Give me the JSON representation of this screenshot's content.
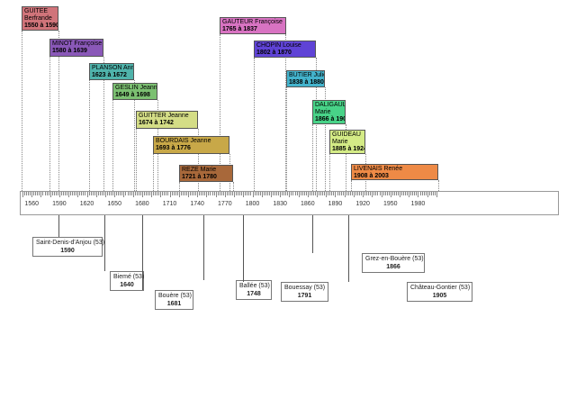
{
  "timeline": {
    "axis": {
      "start": 1550,
      "end": 2000,
      "labels": [
        "1560",
        "1590",
        "1620",
        "1650",
        "1680",
        "1710",
        "1740",
        "1770",
        "1800",
        "1830",
        "1860",
        "1890",
        "1920",
        "1950",
        "1980"
      ]
    },
    "persons": [
      {
        "name_lines": [
          "GUITEE",
          "Berfrande"
        ],
        "years": "1550 à 1590",
        "birth": 1550,
        "death": 1590,
        "color": "#d0747a"
      },
      {
        "name_lines": [
          "MINOT Françoise"
        ],
        "years": "1580 à 1639",
        "birth": 1580,
        "death": 1639,
        "color": "#8a58b8"
      },
      {
        "name_lines": [
          "PLANSON Anne"
        ],
        "years": "1623 à 1672",
        "birth": 1623,
        "death": 1672,
        "color": "#4fb3ab"
      },
      {
        "name_lines": [
          "GESLIN Jeanne"
        ],
        "years": "1649 à 1698",
        "birth": 1649,
        "death": 1698,
        "color": "#7cc072"
      },
      {
        "name_lines": [
          "GUITTER Jeanne"
        ],
        "years": "1674 à 1742",
        "birth": 1674,
        "death": 1742,
        "color": "#d4dd86"
      },
      {
        "name_lines": [
          "BOURDAIS Jeanne"
        ],
        "years": "1693 à 1776",
        "birth": 1693,
        "death": 1776,
        "color": "#c8a848"
      },
      {
        "name_lines": [
          "REZE Marie"
        ],
        "years": "1721 à 1780",
        "birth": 1721,
        "death": 1780,
        "color": "#a8683a"
      },
      {
        "name_lines": [
          "GAUTEUR Françoise"
        ],
        "years": "1765 à 1837",
        "birth": 1765,
        "death": 1837,
        "color": "#d873c2"
      },
      {
        "name_lines": [
          "CHOPIN Louise"
        ],
        "years": "1802 à 1870",
        "birth": 1802,
        "death": 1870,
        "color": "#5f43d6"
      },
      {
        "name_lines": [
          "BUTIER Julie"
        ],
        "years": "1838 à 1880",
        "birth": 1838,
        "death": 1880,
        "color": "#43b3cc"
      },
      {
        "name_lines": [
          "DALIGAULT",
          "Marie"
        ],
        "years": "1866 à 1902",
        "birth": 1866,
        "death": 1902,
        "color": "#48d388"
      },
      {
        "name_lines": [
          "GUIDEAU",
          "Marie"
        ],
        "years": "1885 à 1924",
        "birth": 1885,
        "death": 1924,
        "color": "#d4eb86"
      },
      {
        "name_lines": [
          "LIVENAIS Renée"
        ],
        "years": "1908 à 2003",
        "birth": 1908,
        "death": 2003,
        "color": "#ee8a46"
      }
    ],
    "events": [
      {
        "place": "Saint-Denis-d'Anjou (53)",
        "year": "1590",
        "value": 1590
      },
      {
        "place": "Biemé (53)",
        "year": "1640",
        "value": 1640
      },
      {
        "place": "Bouère (53)",
        "year": "1681",
        "value": 1681
      },
      {
        "place": "Ballée (53)",
        "year": "1748",
        "value": 1748
      },
      {
        "place": "Bouessay (53)",
        "year": "1791",
        "value": 1791
      },
      {
        "place": "Grez-en-Bouère (53)",
        "year": "1866",
        "value": 1866
      },
      {
        "place": "Château-Gontier (53)",
        "year": "1905",
        "value": 1905
      }
    ]
  }
}
